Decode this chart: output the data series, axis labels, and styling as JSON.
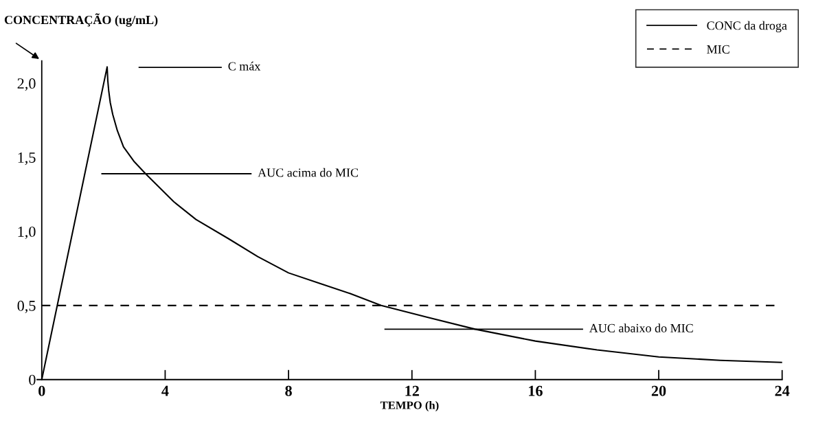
{
  "chart_data": {
    "type": "line",
    "ylabel": "CONCENTRAÇÃO (ug/mL)",
    "xlabel": "TEMPO (h)",
    "xlim": [
      -0.15,
      24
    ],
    "xticks": [
      0,
      4,
      8,
      12,
      16,
      20,
      24
    ],
    "ylim": [
      0,
      2.15
    ],
    "yticks": [
      {
        "value": 0,
        "label": "0"
      },
      {
        "value": 0.5,
        "label": "0,5"
      },
      {
        "value": 1.0,
        "label": "1,0"
      },
      {
        "value": 1.5,
        "label": "1,5"
      },
      {
        "value": 2.0,
        "label": "2,0"
      }
    ],
    "series": [
      {
        "name": "CONC da droga",
        "color": "#000000",
        "line_style": "solid",
        "x": [
          0,
          2.12,
          2.14,
          2.17,
          2.22,
          2.3,
          2.45,
          2.65,
          3.0,
          3.36,
          4.28,
          5.0,
          6.06,
          7.0,
          8.0,
          9.0,
          10.0,
          11.0,
          12.5,
          14.05,
          16.0,
          18.0,
          20.0,
          22.0,
          24.0
        ],
        "values": [
          0,
          2.11,
          2.02,
          1.95,
          1.87,
          1.79,
          1.68,
          1.57,
          1.47,
          1.39,
          1.2,
          1.08,
          0.95,
          0.83,
          0.72,
          0.65,
          0.58,
          0.5,
          0.42,
          0.34,
          0.26,
          0.2,
          0.153,
          0.13,
          0.116
        ]
      },
      {
        "name": "MIC",
        "color": "#000000",
        "line_style": "dashed",
        "x": [
          0,
          23.8
        ],
        "values": [
          0.5,
          0.5
        ]
      }
    ],
    "annotations": [
      "C máx",
      "AUC acima do MIC",
      "AUC abaixo do MIC"
    ],
    "legend": "top right",
    "grid": false,
    "marker": "none"
  }
}
